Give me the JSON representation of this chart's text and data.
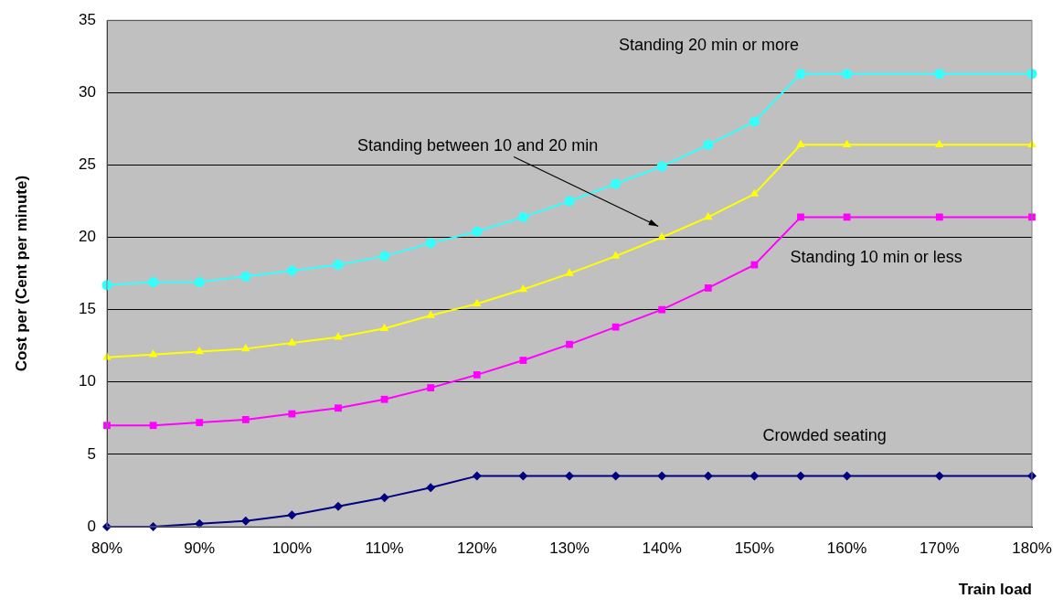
{
  "chart_data": {
    "type": "line",
    "xlabel": "Train load",
    "ylabel": "Cost per (Cent per minute)",
    "x": [
      80,
      85,
      90,
      95,
      100,
      105,
      110,
      115,
      120,
      125,
      130,
      135,
      140,
      145,
      150,
      155,
      160,
      170,
      180
    ],
    "xlim": [
      80,
      180
    ],
    "xticks": [
      {
        "value": 80,
        "label": "80%"
      },
      {
        "value": 90,
        "label": "90%"
      },
      {
        "value": 100,
        "label": "100%"
      },
      {
        "value": 110,
        "label": "110%"
      },
      {
        "value": 120,
        "label": "120%"
      },
      {
        "value": 130,
        "label": "130%"
      },
      {
        "value": 140,
        "label": "140%"
      },
      {
        "value": 150,
        "label": "150%"
      },
      {
        "value": 160,
        "label": "160%"
      },
      {
        "value": 170,
        "label": "170%"
      },
      {
        "value": 180,
        "label": "180%"
      }
    ],
    "ylim": [
      0,
      35
    ],
    "yticks": [
      0,
      5,
      10,
      15,
      20,
      25,
      30,
      35
    ],
    "grid": "y",
    "legend": false,
    "line_style": "solid",
    "series": [
      {
        "name": "Standing 20 min or more",
        "color": "#33ffff",
        "marker": "circle",
        "values": [
          16.7,
          16.9,
          16.9,
          17.3,
          17.7,
          18.1,
          18.7,
          19.6,
          20.4,
          21.4,
          22.5,
          23.7,
          24.9,
          26.4,
          28.0,
          31.3,
          31.3,
          31.3,
          31.3
        ]
      },
      {
        "name": "Standing between 10 and 20 min",
        "color": "#ffff00",
        "marker": "triangle",
        "values": [
          11.7,
          11.9,
          12.1,
          12.3,
          12.7,
          13.1,
          13.7,
          14.6,
          15.4,
          16.4,
          17.5,
          18.7,
          20.0,
          21.4,
          23.0,
          26.4,
          26.4,
          26.4,
          26.4
        ]
      },
      {
        "name": "Standing 10 min or less",
        "color": "#ff00ff",
        "marker": "square",
        "values": [
          7.0,
          7.0,
          7.2,
          7.4,
          7.8,
          8.2,
          8.8,
          9.6,
          10.5,
          11.5,
          12.6,
          13.8,
          15.0,
          16.5,
          18.1,
          21.4,
          21.4,
          21.4,
          21.4
        ]
      },
      {
        "name": "Crowded seating",
        "color": "#000080",
        "marker": "diamond",
        "values": [
          0,
          0,
          0.2,
          0.4,
          0.8,
          1.4,
          2.0,
          2.7,
          3.5,
          3.5,
          3.5,
          3.5,
          3.5,
          3.5,
          3.5,
          3.5,
          3.5,
          3.5,
          3.5
        ]
      }
    ]
  }
}
